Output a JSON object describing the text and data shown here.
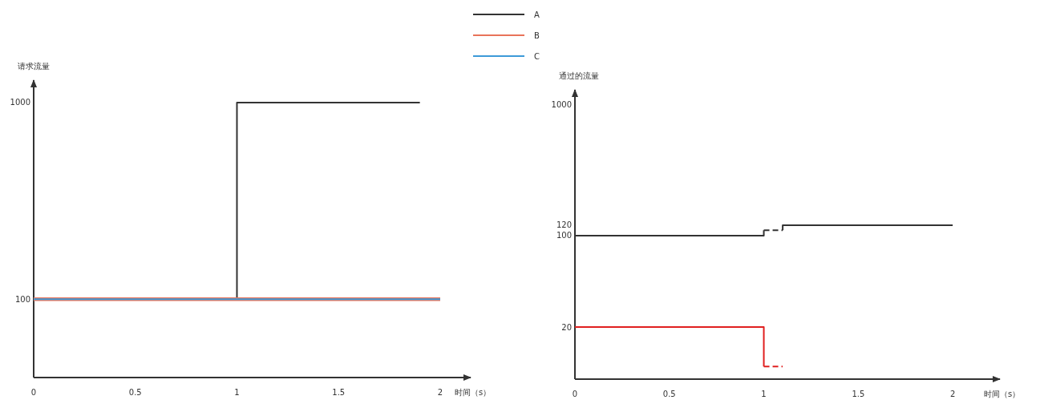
{
  "chart_data": [
    {
      "type": "line",
      "ylabel": "请求流量",
      "xlabel": "时间（s）",
      "xlim": [
        0,
        2.15
      ],
      "ylim": [
        40,
        1300
      ],
      "log": true,
      "xticks": [
        0,
        0.5,
        1,
        1.5,
        2
      ],
      "yticks": [
        100,
        1000
      ],
      "legend": "top right",
      "series": [
        {
          "name": "A",
          "color": "#333333",
          "x": [
            0,
            1,
            1,
            1.9
          ],
          "values": [
            100,
            100,
            1000,
            1000
          ]
        },
        {
          "name": "B",
          "color": "#e8735a",
          "x": [
            0,
            2
          ],
          "values": [
            100,
            100
          ]
        },
        {
          "name": "C",
          "color": "#3d9ad8",
          "x": [
            0,
            2
          ],
          "values": [
            100,
            100
          ]
        }
      ]
    },
    {
      "type": "line",
      "ylabel": "通过的流量",
      "xlabel": "时间（s）",
      "xlim": [
        0,
        2.25
      ],
      "ylim": [
        8,
        1300
      ],
      "log": true,
      "xticks": [
        0,
        0.5,
        1,
        1.5,
        2
      ],
      "yticks": [
        20,
        100,
        120,
        1000
      ],
      "series": [
        {
          "color": "#333333",
          "x": [
            0,
            1,
            1
          ],
          "values": [
            100,
            100,
            110
          ]
        },
        {
          "color": "#333333",
          "line_style": "dashed",
          "x": [
            1,
            1.1
          ],
          "values": [
            110,
            110
          ]
        },
        {
          "color": "#333333",
          "x": [
            1.1,
            1.1,
            2
          ],
          "values": [
            110,
            120,
            120
          ]
        },
        {
          "color": "#e02020",
          "x": [
            0,
            1,
            1
          ],
          "values": [
            20,
            20,
            10
          ]
        },
        {
          "color": "#e02020",
          "line_style": "dashed",
          "x": [
            1,
            1.1
          ],
          "values": [
            10,
            10
          ]
        }
      ]
    }
  ]
}
